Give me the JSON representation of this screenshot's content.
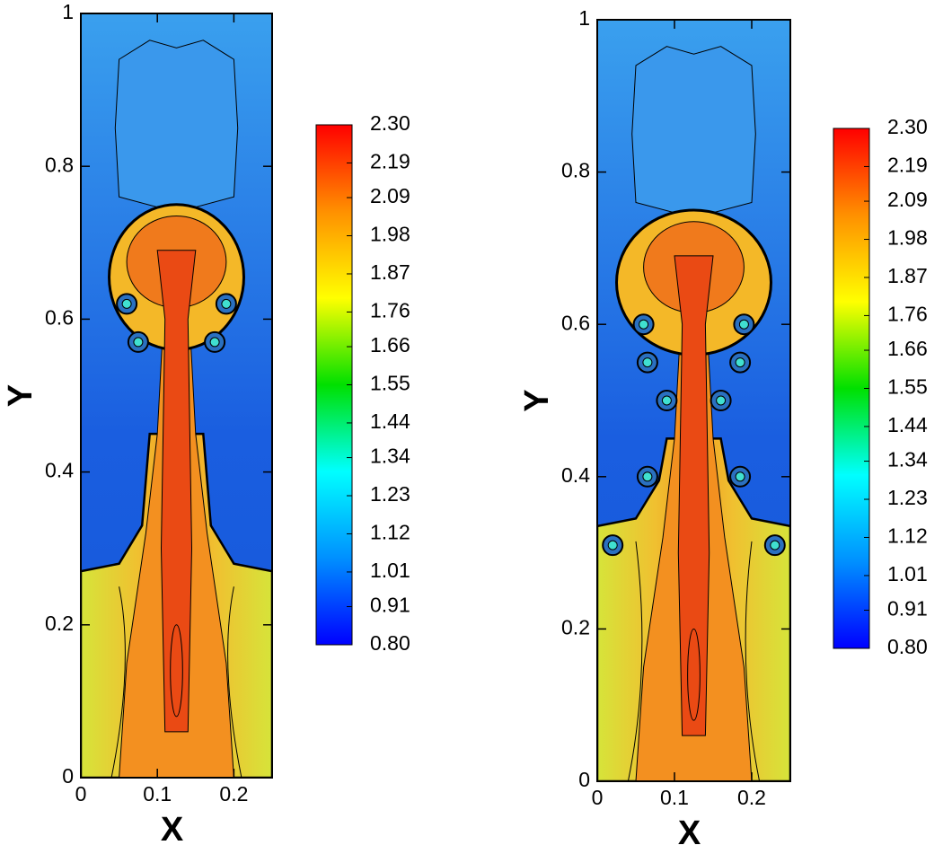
{
  "chart_data": [
    {
      "type": "contour",
      "xlabel": "X",
      "ylabel": "Y",
      "xlim": [
        0,
        0.25
      ],
      "ylim": [
        0,
        1
      ],
      "xticks": [
        0,
        0.1,
        0.2
      ],
      "yticks": [
        0,
        0.2,
        0.4,
        0.6,
        0.8,
        1
      ],
      "colorbar": {
        "lim": [
          0.8,
          2.3
        ],
        "ticks": [
          {
            "value": 0.8,
            "label": "0.80"
          },
          0.91,
          1.01,
          1.12,
          1.23,
          1.34,
          1.44,
          1.55,
          1.66,
          1.76,
          1.87,
          1.98,
          2.09,
          2.19,
          {
            "value": 2.3,
            "label": "2.30"
          }
        ]
      },
      "colormap": [
        "#0000ff",
        "#0090ff",
        "#00ffff",
        "#00e000",
        "#ffff00",
        "#ff9000",
        "#ff0000"
      ]
    },
    {
      "type": "contour",
      "xlabel": "X",
      "ylabel": "Y",
      "xlim": [
        0,
        0.25
      ],
      "ylim": [
        0,
        1
      ],
      "xticks": [
        0,
        0.1,
        0.2
      ],
      "yticks": [
        0,
        0.2,
        0.4,
        0.6,
        0.8,
        1
      ],
      "colorbar": {
        "lim": [
          0.8,
          2.3
        ],
        "ticks": [
          {
            "value": 0.8,
            "label": "0.80"
          },
          0.91,
          1.01,
          1.12,
          1.23,
          1.34,
          1.44,
          1.55,
          1.66,
          1.76,
          1.87,
          1.98,
          2.09,
          2.19,
          {
            "value": 2.3,
            "label": "2.30"
          }
        ]
      },
      "colormap": [
        "#0000ff",
        "#0090ff",
        "#00ffff",
        "#00e000",
        "#ffff00",
        "#ff9000",
        "#ff0000"
      ]
    }
  ]
}
